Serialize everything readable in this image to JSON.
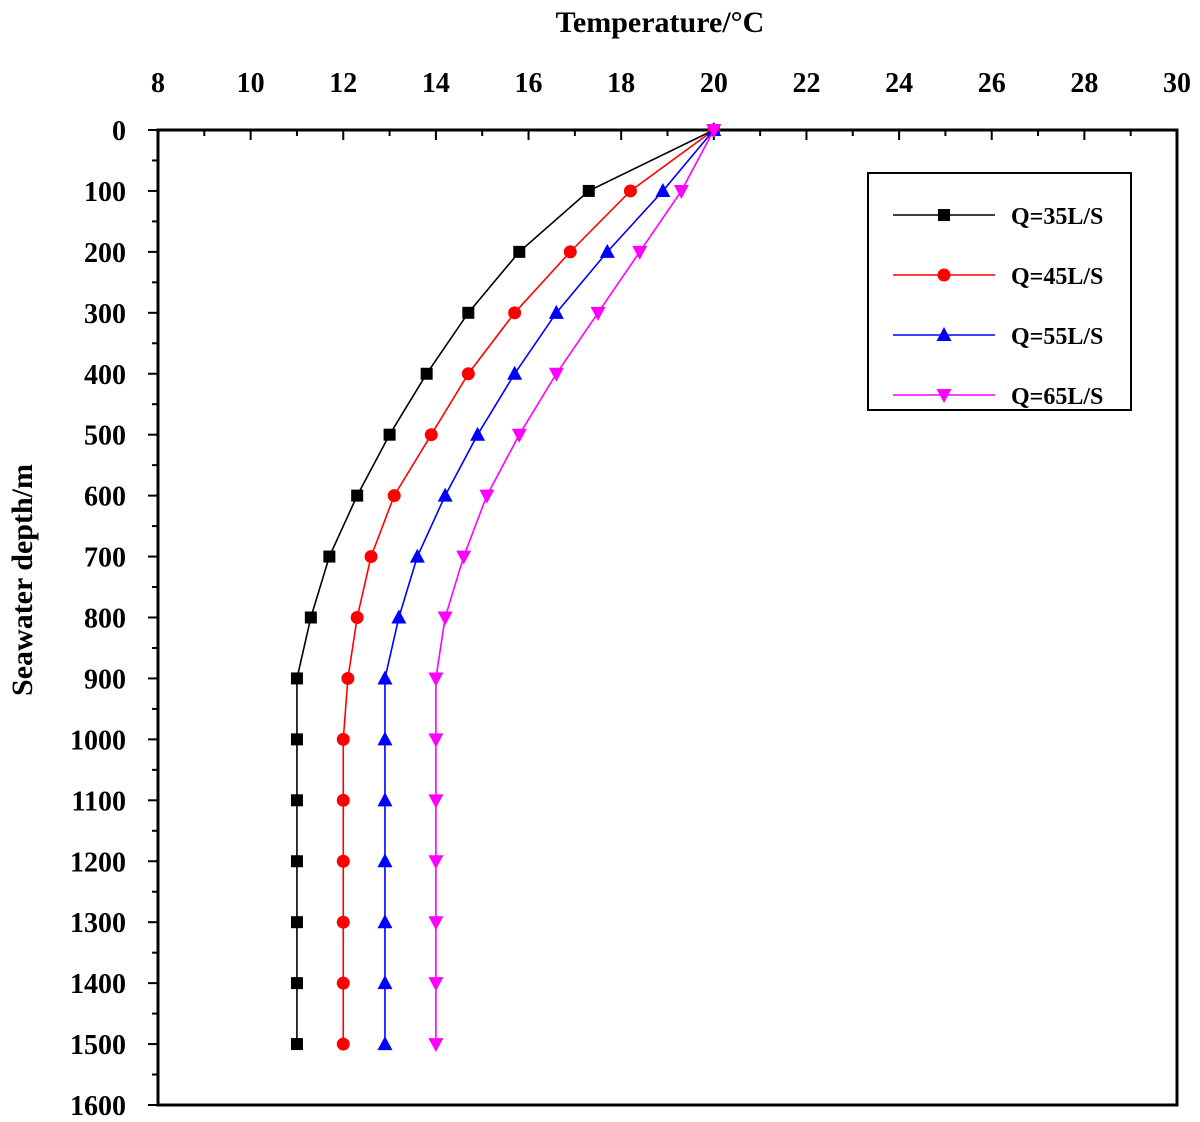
{
  "chart_data": {
    "type": "line",
    "xlabel": "Temperature/°C",
    "ylabel": "Seawater depth/m",
    "x_axis_position": "top",
    "y_axis_inverted": true,
    "xlim": [
      8,
      30
    ],
    "ylim": [
      0,
      1600
    ],
    "x_ticks": [
      "8",
      "10",
      "12",
      "14",
      "16",
      "18",
      "20",
      "22",
      "24",
      "26",
      "28",
      "30"
    ],
    "y_ticks": [
      "0",
      "100",
      "200",
      "300",
      "400",
      "500",
      "600",
      "700",
      "800",
      "900",
      "1000",
      "1100",
      "1200",
      "1300",
      "1400",
      "1500",
      "1600"
    ],
    "grid": false,
    "legend_position": "top-right",
    "series": [
      {
        "name": "Q=35L/S",
        "color": "#000000",
        "marker": "square",
        "points": [
          [
            20,
            0
          ],
          [
            17.3,
            100
          ],
          [
            15.8,
            200
          ],
          [
            14.7,
            300
          ],
          [
            13.8,
            400
          ],
          [
            13,
            500
          ],
          [
            12.3,
            600
          ],
          [
            11.7,
            700
          ],
          [
            11.3,
            800
          ],
          [
            11,
            900
          ],
          [
            11,
            1000
          ],
          [
            11,
            1100
          ],
          [
            11,
            1200
          ],
          [
            11,
            1300
          ],
          [
            11,
            1400
          ],
          [
            11,
            1500
          ]
        ]
      },
      {
        "name": "Q=45L/S",
        "color": "#ff0000",
        "marker": "circle",
        "points": [
          [
            20,
            0
          ],
          [
            18.2,
            100
          ],
          [
            16.9,
            200
          ],
          [
            15.7,
            300
          ],
          [
            14.7,
            400
          ],
          [
            13.9,
            500
          ],
          [
            13.1,
            600
          ],
          [
            12.6,
            700
          ],
          [
            12.3,
            800
          ],
          [
            12.1,
            900
          ],
          [
            12,
            1000
          ],
          [
            12,
            1100
          ],
          [
            12,
            1200
          ],
          [
            12,
            1300
          ],
          [
            12,
            1400
          ],
          [
            12,
            1500
          ]
        ]
      },
      {
        "name": "Q=55L/S",
        "color": "#0000ff",
        "marker": "triangle-up",
        "points": [
          [
            20,
            0
          ],
          [
            18.9,
            100
          ],
          [
            17.7,
            200
          ],
          [
            16.6,
            300
          ],
          [
            15.7,
            400
          ],
          [
            14.9,
            500
          ],
          [
            14.2,
            600
          ],
          [
            13.6,
            700
          ],
          [
            13.2,
            800
          ],
          [
            12.9,
            900
          ],
          [
            12.9,
            1000
          ],
          [
            12.9,
            1100
          ],
          [
            12.9,
            1200
          ],
          [
            12.9,
            1300
          ],
          [
            12.9,
            1400
          ],
          [
            12.9,
            1500
          ]
        ]
      },
      {
        "name": "Q=65L/S",
        "color": "#ff00ff",
        "marker": "triangle-down",
        "points": [
          [
            20,
            0
          ],
          [
            19.3,
            100
          ],
          [
            18.4,
            200
          ],
          [
            17.5,
            300
          ],
          [
            16.6,
            400
          ],
          [
            15.8,
            500
          ],
          [
            15.1,
            600
          ],
          [
            14.6,
            700
          ],
          [
            14.2,
            800
          ],
          [
            14,
            900
          ],
          [
            14,
            1000
          ],
          [
            14,
            1100
          ],
          [
            14,
            1200
          ],
          [
            14,
            1300
          ],
          [
            14,
            1400
          ],
          [
            14,
            1500
          ]
        ]
      }
    ]
  }
}
